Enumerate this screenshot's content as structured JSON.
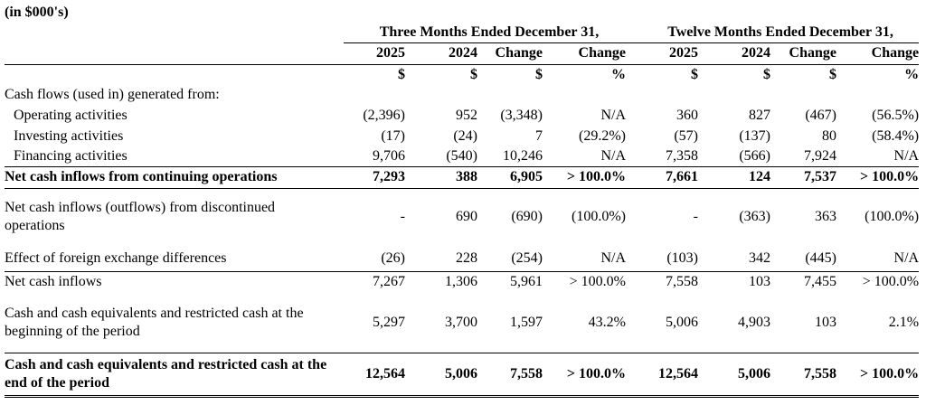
{
  "note": "(in $000's)",
  "header": {
    "groups": [
      "Three Months Ended December 31,",
      "Twelve Months Ended December 31,"
    ],
    "columns": [
      "2025",
      "2024",
      "Change",
      "Change",
      "2025",
      "2024",
      "Change",
      "Change"
    ],
    "units": [
      "$",
      "$",
      "$",
      "%",
      "$",
      "$",
      "$",
      "%"
    ]
  },
  "table": {
    "rows": [
      {
        "label": "Cash flows (used in) generated from:"
      },
      {
        "label": "Operating activities",
        "cells": [
          "(2,396)",
          "952",
          "(3,348)",
          "N/A",
          "360",
          "827",
          "(467)",
          "(56.5%)"
        ]
      },
      {
        "label": "Investing activities",
        "cells": [
          "(17)",
          "(24)",
          "7",
          "(29.2%)",
          "(57)",
          "(137)",
          "80",
          "(58.4%)"
        ]
      },
      {
        "label": "Financing activities",
        "cells": [
          "9,706",
          "(540)",
          "10,246",
          "N/A",
          "7,358",
          "(566)",
          "7,924",
          "N/A"
        ]
      },
      {
        "label": "Net cash inflows from continuing operations",
        "cells": [
          "7,293",
          "388",
          "6,905",
          "> 100.0%",
          "7,661",
          "124",
          "7,537",
          "> 100.0%"
        ]
      },
      {
        "label": "Net cash inflows (outflows) from discontinued operations",
        "cells": [
          "-",
          "690",
          "(690)",
          "(100.0%)",
          "-",
          "(363)",
          "363",
          "(100.0%)"
        ]
      },
      {
        "label": "Effect of foreign exchange differences",
        "cells": [
          "(26)",
          "228",
          "(254)",
          "N/A",
          "(103)",
          "342",
          "(445)",
          "N/A"
        ]
      },
      {
        "label": "Net cash inflows",
        "cells": [
          "7,267",
          "1,306",
          "5,961",
          "> 100.0%",
          "7,558",
          "103",
          "7,455",
          "> 100.0%"
        ]
      },
      {
        "label": "Cash and cash equivalents and restricted cash at the beginning of the period",
        "cells": [
          "5,297",
          "3,700",
          "1,597",
          "43.2%",
          "5,006",
          "4,903",
          "103",
          "2.1%"
        ]
      },
      {
        "label": "Cash and cash equivalents and restricted cash at the end of the period",
        "cells": [
          "12,564",
          "5,006",
          "7,558",
          "> 100.0%",
          "12,564",
          "5,006",
          "7,558",
          "> 100.0%"
        ]
      }
    ]
  }
}
